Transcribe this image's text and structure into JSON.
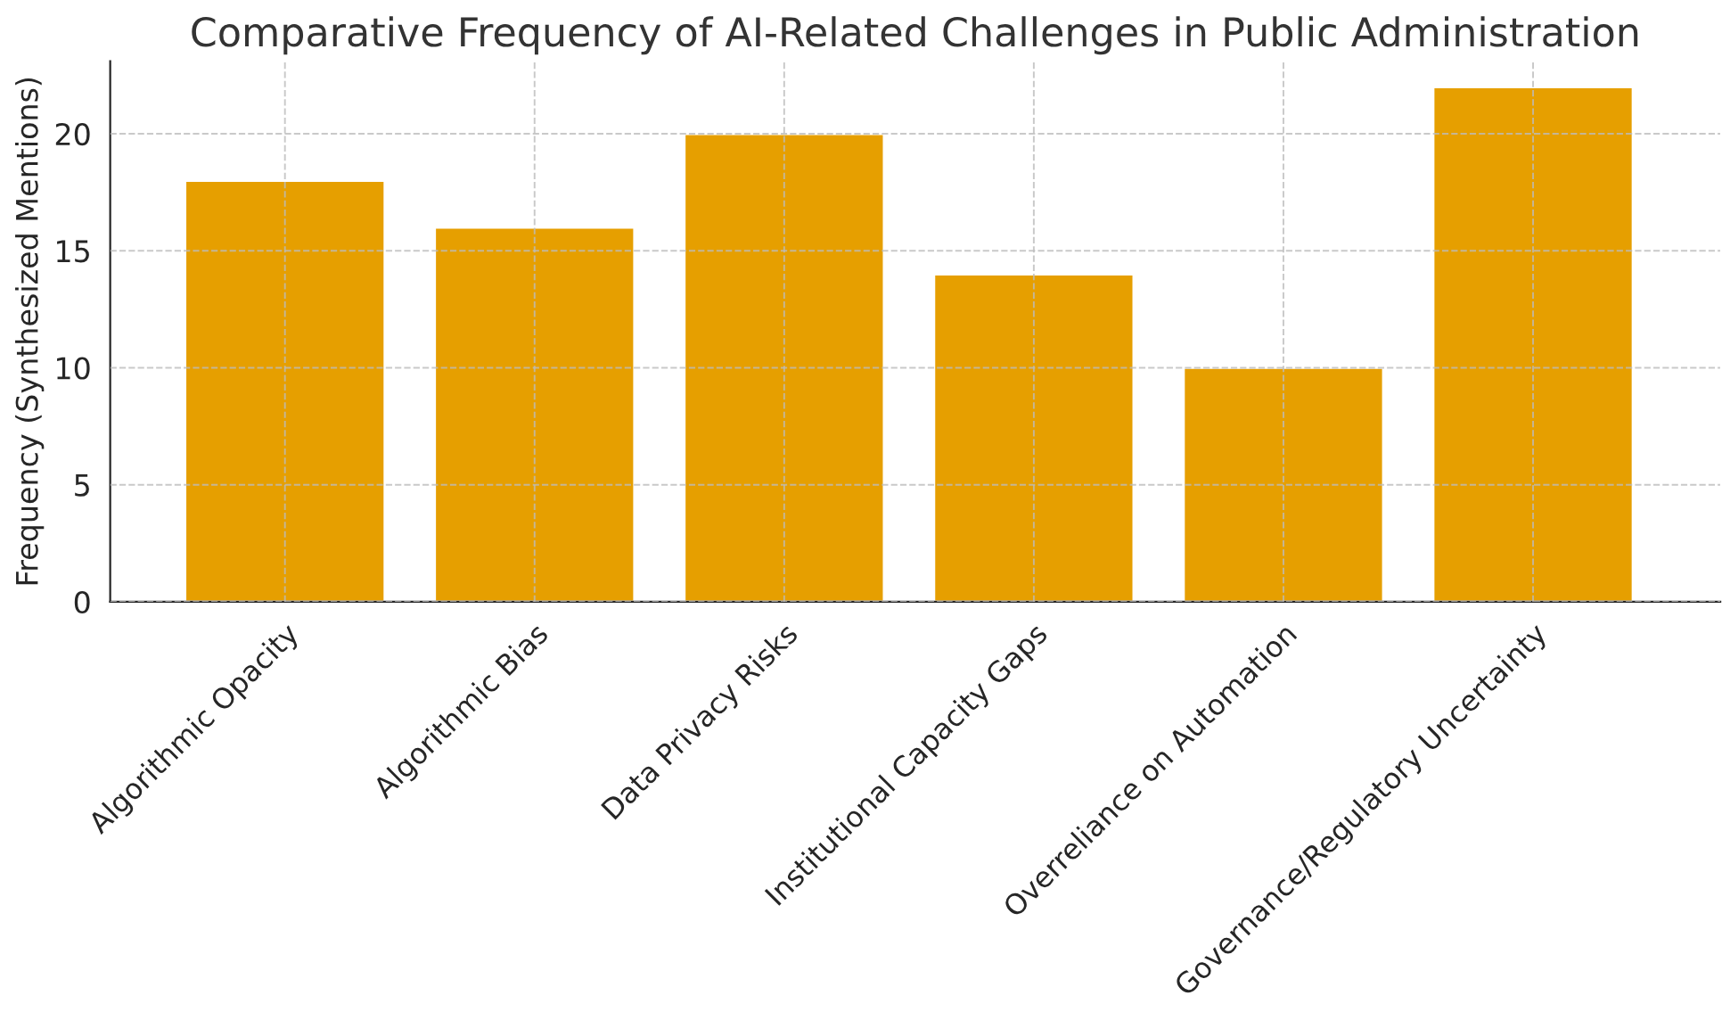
{
  "chart_data": {
    "type": "bar",
    "title": "Comparative Frequency of AI-Related Challenges in Public Administration",
    "ylabel": "Frequency (Synthesized Mentions)",
    "categories": [
      "Algorithmic Opacity",
      "Algorithmic Bias",
      "Data Privacy Risks",
      "Institutional Capacity Gaps",
      "Overreliance on Automation",
      "Governance/Regulatory Uncertainty"
    ],
    "values": [
      18,
      16,
      20,
      14,
      10,
      22
    ],
    "color": "#e69f00",
    "ylim": [
      0,
      23.1
    ],
    "yticks": [
      0,
      5,
      10,
      15,
      20
    ],
    "grid": true
  }
}
